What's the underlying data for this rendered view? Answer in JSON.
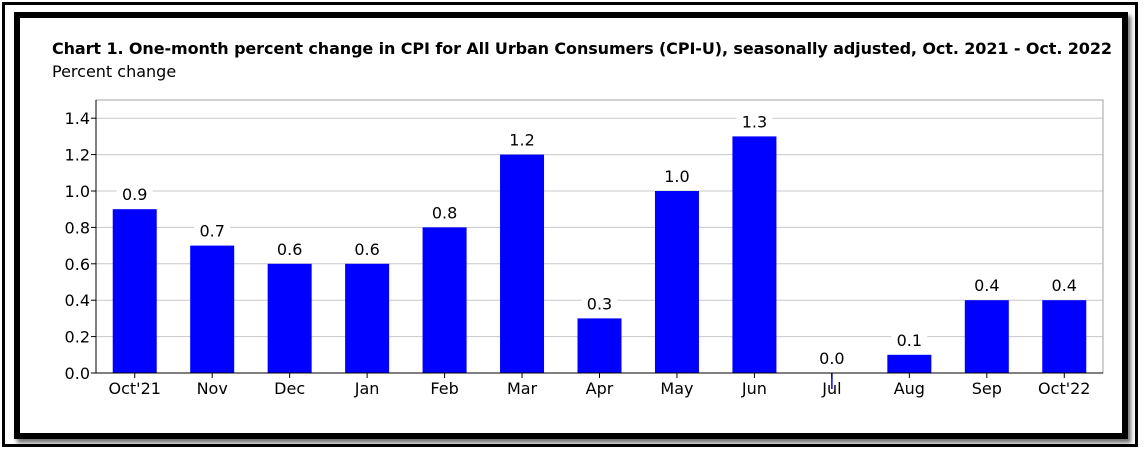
{
  "chart_data": {
    "type": "bar",
    "title": "Chart 1. One-month percent change in CPI for All Urban Consumers (CPI-U), seasonally adjusted, Oct. 2021 - Oct. 2022",
    "ylabel": "Percent change",
    "categories": [
      "Oct'21",
      "Nov",
      "Dec",
      "Jan",
      "Feb",
      "Mar",
      "Apr",
      "May",
      "Jun",
      "Jul",
      "Aug",
      "Sep",
      "Oct'22"
    ],
    "values": [
      0.9,
      0.7,
      0.6,
      0.6,
      0.8,
      1.2,
      0.3,
      1.0,
      1.3,
      0.0,
      0.1,
      0.4,
      0.4
    ],
    "data_labels": [
      "0.9",
      "0.7",
      "0.6",
      "0.6",
      "0.8",
      "1.2",
      "0.3",
      "1.0",
      "1.3",
      "0.0",
      "0.1",
      "0.4",
      "0.4"
    ],
    "yticks": [
      "0.0",
      "0.2",
      "0.4",
      "0.6",
      "0.8",
      "1.0",
      "1.2",
      "1.4"
    ],
    "ylim": [
      0,
      1.5
    ],
    "grid": true,
    "bar_color": "#0000ff",
    "grid_color": "#c8c8c8"
  }
}
